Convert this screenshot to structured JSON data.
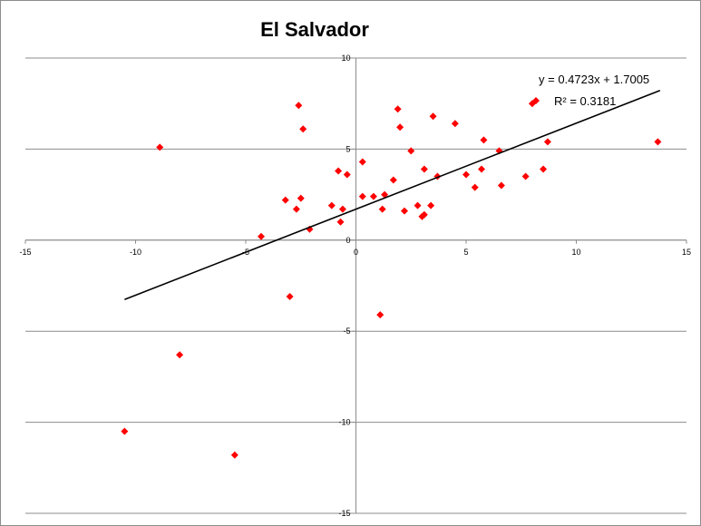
{
  "chart_data": {
    "type": "scatter",
    "title": "El Salvador",
    "xlim": [
      -15,
      15
    ],
    "ylim": [
      -15,
      10
    ],
    "x_ticks": [
      "-15",
      "-10",
      "-5",
      "0",
      "5",
      "10",
      "15"
    ],
    "y_ticks": [
      "10",
      "5",
      "0",
      "-5",
      "-10",
      "-15"
    ],
    "grid": "horizontal",
    "marker": "diamond",
    "marker_color": "#ff0000",
    "trendline_color": "#000000",
    "trendline": {
      "slope": 0.4723,
      "intercept": 1.7005,
      "x_range": [
        -10.5,
        13.8
      ]
    },
    "equation_label": "y = 0.4723x + 1.7005",
    "r2_label": "R² = 0.3181",
    "points": [
      {
        "x": -10.5,
        "y": -10.5
      },
      {
        "x": -8.9,
        "y": 5.1
      },
      {
        "x": -8.0,
        "y": -6.3
      },
      {
        "x": -5.5,
        "y": -11.8
      },
      {
        "x": -4.3,
        "y": 0.2
      },
      {
        "x": -3.2,
        "y": 2.2
      },
      {
        "x": -3.0,
        "y": -3.1
      },
      {
        "x": -2.7,
        "y": 1.7
      },
      {
        "x": -2.6,
        "y": 7.4
      },
      {
        "x": -2.5,
        "y": 2.3
      },
      {
        "x": -2.4,
        "y": 6.1
      },
      {
        "x": -2.1,
        "y": 0.6
      },
      {
        "x": -1.1,
        "y": 1.9
      },
      {
        "x": -0.8,
        "y": 3.8
      },
      {
        "x": -0.7,
        "y": 1.0
      },
      {
        "x": -0.6,
        "y": 1.7
      },
      {
        "x": -0.4,
        "y": 3.6
      },
      {
        "x": 0.3,
        "y": 4.3
      },
      {
        "x": 0.3,
        "y": 2.4
      },
      {
        "x": 0.8,
        "y": 2.4
      },
      {
        "x": 1.1,
        "y": -4.1
      },
      {
        "x": 1.2,
        "y": 1.7
      },
      {
        "x": 1.3,
        "y": 2.5
      },
      {
        "x": 1.7,
        "y": 3.3
      },
      {
        "x": 1.9,
        "y": 7.2
      },
      {
        "x": 2.0,
        "y": 6.2
      },
      {
        "x": 2.2,
        "y": 1.6
      },
      {
        "x": 2.5,
        "y": 4.9
      },
      {
        "x": 2.8,
        "y": 1.9
      },
      {
        "x": 3.0,
        "y": 1.3
      },
      {
        "x": 3.1,
        "y": 1.4
      },
      {
        "x": 3.1,
        "y": 3.9
      },
      {
        "x": 3.4,
        "y": 1.9
      },
      {
        "x": 3.5,
        "y": 6.8
      },
      {
        "x": 3.7,
        "y": 3.5
      },
      {
        "x": 4.5,
        "y": 6.4
      },
      {
        "x": 5.0,
        "y": 3.6
      },
      {
        "x": 5.4,
        "y": 2.9
      },
      {
        "x": 5.7,
        "y": 3.9
      },
      {
        "x": 5.8,
        "y": 5.5
      },
      {
        "x": 6.5,
        "y": 4.9
      },
      {
        "x": 6.6,
        "y": 3.0
      },
      {
        "x": 7.7,
        "y": 3.5
      },
      {
        "x": 8.0,
        "y": 7.5
      },
      {
        "x": 8.5,
        "y": 3.9
      },
      {
        "x": 8.7,
        "y": 5.4
      },
      {
        "x": 13.7,
        "y": 5.4
      }
    ]
  }
}
